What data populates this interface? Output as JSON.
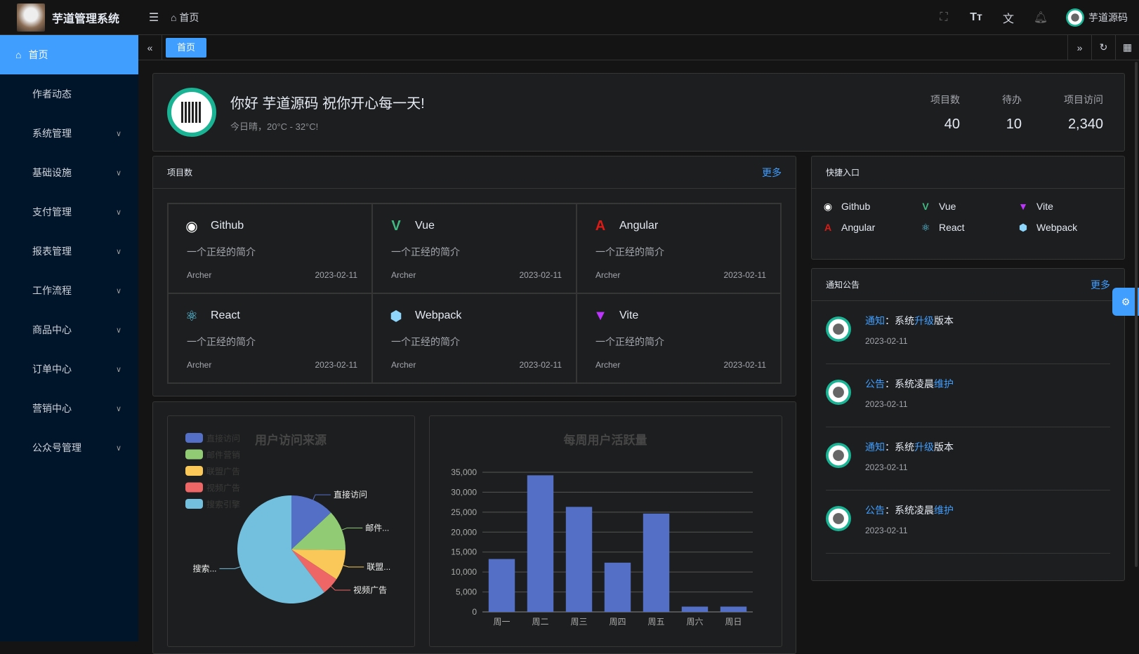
{
  "header": {
    "title": "芋道管理系统",
    "breadcrumb": "首页",
    "user": "芋道源码"
  },
  "sidebar": {
    "items": [
      {
        "label": "首页",
        "active": true
      },
      {
        "label": "作者动态"
      },
      {
        "label": "系统管理",
        "sub": true
      },
      {
        "label": "基础设施",
        "sub": true
      },
      {
        "label": "支付管理",
        "sub": true
      },
      {
        "label": "报表管理",
        "sub": true
      },
      {
        "label": "工作流程",
        "sub": true
      },
      {
        "label": "商品中心",
        "sub": true
      },
      {
        "label": "订单中心",
        "sub": true
      },
      {
        "label": "营销中心",
        "sub": true
      },
      {
        "label": "公众号管理",
        "sub": true
      }
    ]
  },
  "tabs": [
    {
      "label": "首页"
    }
  ],
  "welcome": {
    "greeting": "你好 芋道源码 祝你开心每一天!",
    "weather": "今日晴，20°C - 32°C!",
    "stats": [
      {
        "label": "项目数",
        "value": "40"
      },
      {
        "label": "待办",
        "value": "10"
      },
      {
        "label": "项目访问",
        "value": "2,340"
      }
    ]
  },
  "projects": {
    "title": "项目数",
    "more": "更多",
    "items": [
      {
        "name": "Github",
        "desc": "一个正经的简介",
        "author": "Archer",
        "date": "2023-02-11",
        "icon": "github-icon",
        "color": "#ffffff"
      },
      {
        "name": "Vue",
        "desc": "一个正经的简介",
        "author": "Archer",
        "date": "2023-02-11",
        "icon": "vue-icon",
        "color": "#42b883"
      },
      {
        "name": "Angular",
        "desc": "一个正经的简介",
        "author": "Archer",
        "date": "2023-02-11",
        "icon": "angular-icon",
        "color": "#dd1b16"
      },
      {
        "name": "React",
        "desc": "一个正经的简介",
        "author": "Archer",
        "date": "2023-02-11",
        "icon": "react-icon",
        "color": "#61dafb"
      },
      {
        "name": "Webpack",
        "desc": "一个正经的简介",
        "author": "Archer",
        "date": "2023-02-11",
        "icon": "webpack-icon",
        "color": "#8ed6fb"
      },
      {
        "name": "Vite",
        "desc": "一个正经的简介",
        "author": "Archer",
        "date": "2023-02-11",
        "icon": "vite-icon",
        "color": "#bd34fe"
      }
    ]
  },
  "quick": {
    "title": "快捷入口",
    "items": [
      {
        "name": "Github",
        "color": "#ffffff"
      },
      {
        "name": "Vue",
        "color": "#42b883"
      },
      {
        "name": "Vite",
        "color": "#bd34fe"
      },
      {
        "name": "Angular",
        "color": "#dd1b16"
      },
      {
        "name": "React",
        "color": "#61dafb"
      },
      {
        "name": "Webpack",
        "color": "#8ed6fb"
      }
    ]
  },
  "notice": {
    "title": "通知公告",
    "more": "更多",
    "items": [
      {
        "type": "通知",
        "pre": "：系统",
        "hl": "升级",
        "post": "版本",
        "date": "2023-02-11"
      },
      {
        "type": "公告",
        "pre": "：系统凌晨",
        "hl": "维护",
        "post": "",
        "date": "2023-02-11"
      },
      {
        "type": "通知",
        "pre": "：系统",
        "hl": "升级",
        "post": "版本",
        "date": "2023-02-11"
      },
      {
        "type": "公告",
        "pre": "：系统凌晨",
        "hl": "维护",
        "post": "",
        "date": "2023-02-11"
      }
    ]
  },
  "chart_data": [
    {
      "type": "pie",
      "title": "用户访问来源",
      "legend": "top-left",
      "categories": [
        "直接访问",
        "邮件营销",
        "联盟广告",
        "视频广告",
        "搜索引擎"
      ],
      "values": [
        335,
        310,
        234,
        135,
        1548
      ],
      "colors": [
        "#5470c6",
        "#91cc75",
        "#fac858",
        "#ee6666",
        "#73c0de"
      ],
      "labels": [
        "直接访问",
        "邮件...",
        "联盟...",
        "视频广告",
        "搜索..."
      ]
    },
    {
      "type": "bar",
      "title": "每周用户活跃量",
      "categories": [
        "周一",
        "周二",
        "周三",
        "周四",
        "周五",
        "周六",
        "周日"
      ],
      "values": [
        13253,
        34235,
        26321,
        12340,
        24643,
        1322,
        1324
      ],
      "ylim": [
        0,
        35000
      ],
      "yticks": [
        "0",
        "5,000",
        "10,000",
        "15,000",
        "20,000",
        "25,000",
        "30,000",
        "35,000"
      ],
      "color": "#5470c6",
      "grid": true
    }
  ]
}
